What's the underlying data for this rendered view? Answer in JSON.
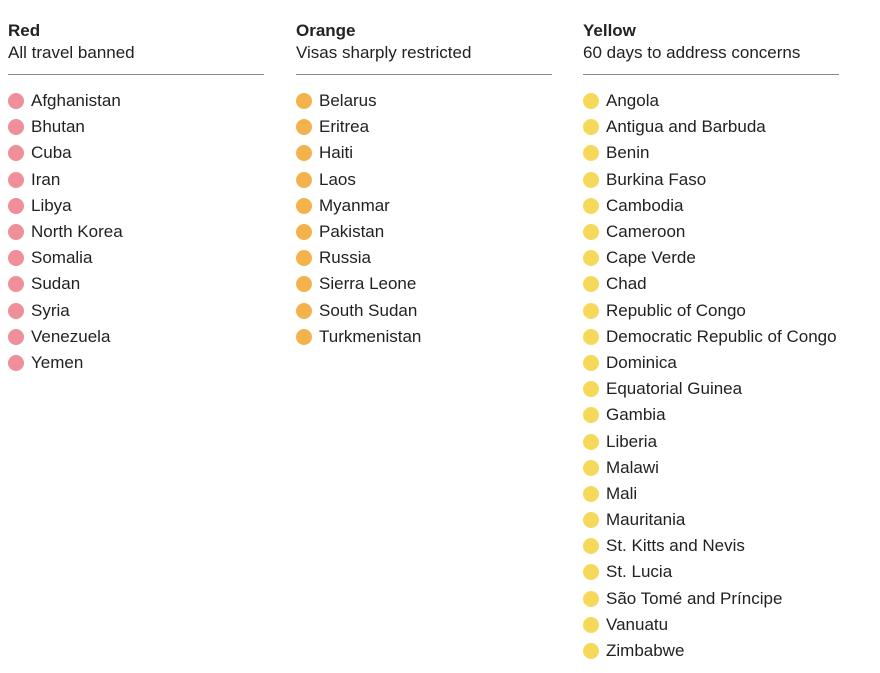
{
  "columns": [
    {
      "title": "Red",
      "subtitle": "All travel banned",
      "color": "#ee8f99",
      "countries": [
        "Afghanistan",
        "Bhutan",
        "Cuba",
        "Iran",
        "Libya",
        "North Korea",
        "Somalia",
        "Sudan",
        "Syria",
        "Venezuela",
        "Yemen"
      ]
    },
    {
      "title": "Orange",
      "subtitle": "Visas sharply restricted",
      "color": "#f4b24c",
      "countries": [
        "Belarus",
        "Eritrea",
        "Haiti",
        "Laos",
        "Myanmar",
        "Pakistan",
        "Russia",
        "Sierra Leone",
        "South Sudan",
        "Turkmenistan"
      ]
    },
    {
      "title": "Yellow",
      "subtitle": "60 days to address concerns",
      "color": "#f6d95a",
      "countries": [
        "Angola",
        "Antigua and Barbuda",
        "Benin",
        "Burkina Faso",
        "Cambodia",
        "Cameroon",
        "Cape Verde",
        "Chad",
        "Republic of Congo",
        "Democratic Republic of Congo",
        "Dominica",
        "Equatorial Guinea",
        "Gambia",
        "Liberia",
        "Malawi",
        "Mali",
        "Mauritania",
        "St. Kitts and Nevis",
        "St. Lucia",
        "São Tomé and Príncipe",
        "Vanuatu",
        "Zimbabwe"
      ]
    }
  ]
}
